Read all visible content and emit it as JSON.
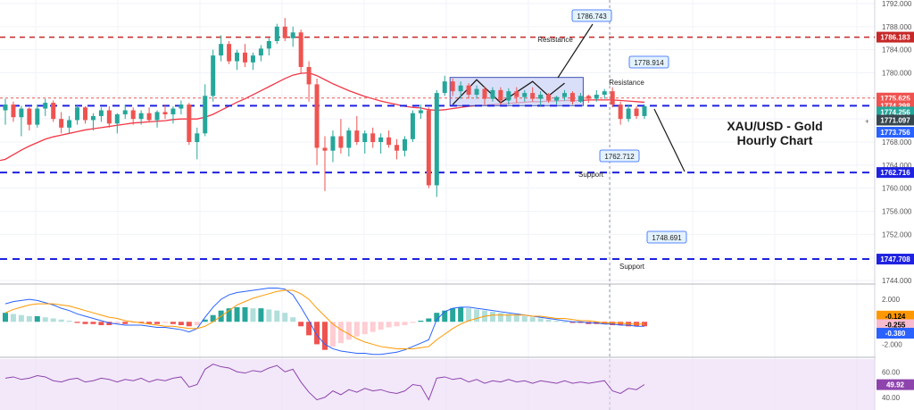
{
  "chart_data": {
    "type": "candlestick",
    "title_lines": [
      "XAU/USD - Gold",
      "Hourly Chart"
    ],
    "colors": {
      "bull": "#26a69a",
      "bear": "#ef5350",
      "ma": "#f23645",
      "support_line": "#1e22e0",
      "resistance_line": "#c62828",
      "rsi_line": "#8e44ad",
      "rsi_band": "#ead9f7",
      "macd_line": "#2962ff",
      "signal_line": "#ff9800",
      "box_fill": "#c9d2f5",
      "box_stroke": "#3f51b5"
    },
    "price_axis": {
      "min": 1744,
      "max": 1792,
      "ticks": [
        "1744.000",
        "1748.000",
        "1752.000",
        "1756.000",
        "1760.000",
        "1764.000",
        "1768.000",
        "1772.000",
        "1776.000",
        "1780.000",
        "1784.000",
        "1788.000",
        "1792.000"
      ]
    },
    "price_tags": [
      {
        "label": "1786.183",
        "value": 1786.183,
        "bg": "#c62828",
        "fg": "#ffffff"
      },
      {
        "label": "1775.625",
        "value": 1775.625,
        "bg": "#ef5350",
        "fg": "#ffffff"
      },
      {
        "label": "1774.298",
        "value": 1774.298,
        "bg": "#ef5350",
        "fg": "#ffffff"
      },
      {
        "label": "1774.256",
        "value": 1773.2,
        "bg": "#26a69a",
        "fg": "#ffffff"
      },
      {
        "label": "1771.097",
        "value": 1771.8,
        "bg": "#37474f",
        "fg": "#ffffff"
      },
      {
        "label": "1773.756",
        "value": 1769.7,
        "bg": "#2962ff",
        "fg": "#ffffff"
      },
      {
        "label": "1762.716",
        "value": 1762.716,
        "bg": "#1e22e0",
        "fg": "#ffffff"
      },
      {
        "label": "1747.708",
        "value": 1747.708,
        "bg": "#1e22e0",
        "fg": "#ffffff"
      }
    ],
    "levels": [
      {
        "name": "resistance-1786",
        "value": 1786.183,
        "color": "#c62828",
        "dash": "6,5",
        "width": 1.5
      },
      {
        "name": "resistance-1775",
        "value": 1775.625,
        "color": "#ef5350",
        "dash": "3,3",
        "width": 1
      },
      {
        "name": "support-1774",
        "value": 1774.298,
        "color": "#1e22e0",
        "dash": "8,6",
        "width": 2
      },
      {
        "name": "support-1762",
        "value": 1762.716,
        "color": "#1e22e0",
        "dash": "8,6",
        "width": 2
      },
      {
        "name": "support-1747",
        "value": 1747.708,
        "color": "#1e22e0",
        "dash": "8,6",
        "width": 2
      }
    ],
    "callouts": [
      {
        "label": "1786.743",
        "note": "Resistance",
        "value": 1790.6,
        "bar": 98
      },
      {
        "label": "1778.914",
        "note": "Resistance",
        "value": 1781.0,
        "bar": 105
      },
      {
        "label": "1762.712",
        "note": "Support",
        "value": 1765.2,
        "bar": 99
      },
      {
        "label": "1748.691",
        "note": "Support",
        "value": 1750.2,
        "bar": 106
      }
    ],
    "macd_axis": {
      "min": -3,
      "max": 3.2,
      "ticks": [
        "2.000",
        "-2.000"
      ]
    },
    "macd_tags": [
      {
        "label": "-0.124",
        "value": -0.124,
        "bg": "#ff9800",
        "fg": "#000000"
      },
      {
        "label": "-0.255",
        "value": -0.255,
        "bg": "#f8bbd0",
        "fg": "#000000"
      },
      {
        "label": "-0.380",
        "value": -0.38,
        "bg": "#2962ff",
        "fg": "#ffffff"
      }
    ],
    "rsi_axis": {
      "min": 30,
      "max": 70,
      "ticks": [
        "60.00",
        "40.00"
      ]
    },
    "rsi_tag": {
      "label": "49.92",
      "value": 49.92,
      "bg": "#8e44ad",
      "fg": "#ffffff"
    },
    "candles": [
      [
        1773.5,
        1775.5,
        1771,
        1774.5
      ],
      [
        1774.5,
        1775,
        1771.5,
        1772.3
      ],
      [
        1772.3,
        1774.3,
        1769,
        1773.8
      ],
      [
        1773.8,
        1774,
        1770,
        1771
      ],
      [
        1771,
        1774.5,
        1770.5,
        1773.8
      ],
      [
        1773.8,
        1775.5,
        1772.5,
        1774.8
      ],
      [
        1774.8,
        1775.2,
        1771.5,
        1772
      ],
      [
        1772,
        1773.2,
        1769.5,
        1770.5
      ],
      [
        1770.5,
        1772.5,
        1769.5,
        1771.8
      ],
      [
        1771.8,
        1774.5,
        1771,
        1774
      ],
      [
        1774,
        1774.2,
        1771.2,
        1771.8
      ],
      [
        1771.8,
        1773,
        1770,
        1772.5
      ],
      [
        1772.5,
        1774,
        1771.5,
        1773.5
      ],
      [
        1773.5,
        1774.2,
        1770.5,
        1771.2
      ],
      [
        1771.2,
        1773,
        1769.5,
        1772.8
      ],
      [
        1772.8,
        1774.5,
        1772,
        1773.5
      ],
      [
        1773.5,
        1774,
        1771,
        1772
      ],
      [
        1772,
        1773.5,
        1771,
        1773
      ],
      [
        1773,
        1774,
        1771.5,
        1771.8
      ],
      [
        1771.8,
        1773.5,
        1770.5,
        1773.2
      ],
      [
        1773.2,
        1774.5,
        1772,
        1772.8
      ],
      [
        1772.8,
        1774.2,
        1771.2,
        1773.8
      ],
      [
        1773.8,
        1775.2,
        1772.8,
        1774.5
      ],
      [
        1774.5,
        1774.8,
        1767.5,
        1768
      ],
      [
        1768,
        1770.5,
        1765,
        1769.5
      ],
      [
        1769.5,
        1778,
        1769,
        1776
      ],
      [
        1776,
        1784,
        1775,
        1783
      ],
      [
        1783,
        1786.5,
        1782,
        1785
      ],
      [
        1785,
        1785.5,
        1781.5,
        1782
      ],
      [
        1782,
        1784,
        1780.5,
        1783.5
      ],
      [
        1783.5,
        1785,
        1781,
        1781.8
      ],
      [
        1781.8,
        1783.5,
        1780.5,
        1783
      ],
      [
        1783,
        1784.8,
        1782,
        1784.2
      ],
      [
        1784.2,
        1786,
        1783,
        1785.5
      ],
      [
        1785.5,
        1788.5,
        1785,
        1788
      ],
      [
        1788,
        1789.5,
        1785.5,
        1786
      ],
      [
        1786,
        1788,
        1784.5,
        1787
      ],
      [
        1787,
        1787.5,
        1780,
        1781
      ],
      [
        1781,
        1782,
        1775,
        1778
      ],
      [
        1778,
        1779,
        1764,
        1767
      ],
      [
        1767,
        1769,
        1759.5,
        1766.5
      ],
      [
        1766.5,
        1770,
        1764.5,
        1769
      ],
      [
        1769,
        1772,
        1766,
        1767
      ],
      [
        1767,
        1770.5,
        1765.5,
        1770
      ],
      [
        1770,
        1772.5,
        1767.5,
        1768
      ],
      [
        1768,
        1770,
        1766,
        1769.5
      ],
      [
        1769.5,
        1770.5,
        1767,
        1768
      ],
      [
        1768,
        1769.5,
        1766,
        1768.8
      ],
      [
        1768.8,
        1770,
        1767,
        1767.5
      ],
      [
        1767.5,
        1768.5,
        1765,
        1766.5
      ],
      [
        1766.5,
        1769,
        1765.5,
        1768.5
      ],
      [
        1768.5,
        1773.5,
        1768,
        1773
      ],
      [
        1773,
        1774.5,
        1772,
        1773.5
      ],
      [
        1773.5,
        1774,
        1760,
        1760.5
      ],
      [
        1760.5,
        1777,
        1758.5,
        1776.5
      ],
      [
        1776.5,
        1779.5,
        1776,
        1778.5
      ],
      [
        1778.5,
        1779,
        1776,
        1776.8
      ],
      [
        1776.8,
        1778.5,
        1775.5,
        1777.8
      ],
      [
        1777.8,
        1778.2,
        1775.5,
        1776.2
      ],
      [
        1776.2,
        1777.8,
        1775.5,
        1777.2
      ],
      [
        1777.2,
        1777.6,
        1774.5,
        1775.5
      ],
      [
        1775.5,
        1777.5,
        1775,
        1777
      ],
      [
        1777,
        1777.5,
        1774.5,
        1775.2
      ],
      [
        1775.2,
        1777.3,
        1774.5,
        1776.8
      ],
      [
        1776.8,
        1777.5,
        1774.8,
        1775.8
      ],
      [
        1775.8,
        1777,
        1775,
        1776.5
      ],
      [
        1776.5,
        1777.5,
        1775,
        1775.5
      ],
      [
        1775.5,
        1776.8,
        1774.2,
        1776.2
      ],
      [
        1776.2,
        1776.5,
        1774.8,
        1775.2
      ],
      [
        1775.2,
        1776,
        1774.5,
        1775.8
      ],
      [
        1775.8,
        1777,
        1775.2,
        1776.5
      ],
      [
        1776.5,
        1776.8,
        1774.5,
        1775
      ],
      [
        1775,
        1776.5,
        1774.8,
        1776
      ],
      [
        1776,
        1776.2,
        1774.8,
        1775.5
      ],
      [
        1775.5,
        1777,
        1775,
        1776.2
      ],
      [
        1776.2,
        1777.2,
        1775.5,
        1776.8
      ],
      [
        1776.8,
        1777.5,
        1774,
        1774.5
      ],
      [
        1774.5,
        1775,
        1771,
        1772
      ],
      [
        1772,
        1774.5,
        1771.5,
        1773.8
      ],
      [
        1773.8,
        1774.2,
        1772,
        1772.5
      ],
      [
        1772.5,
        1774.5,
        1772,
        1774.2
      ]
    ],
    "ma": [
      1765,
      1765.8,
      1766.6,
      1767.3,
      1767.9,
      1768.5,
      1768.9,
      1769.2,
      1769.5,
      1769.8,
      1770.1,
      1770.3,
      1770.5,
      1770.7,
      1770.9,
      1771.1,
      1771.3,
      1771.4,
      1771.5,
      1771.6,
      1771.7,
      1771.9,
      1772,
      1772,
      1772,
      1772.3,
      1772.8,
      1773.5,
      1774.2,
      1774.9,
      1775.5,
      1776.2,
      1776.9,
      1777.6,
      1778.3,
      1779,
      1779.6,
      1779.9,
      1780,
      1779.5,
      1778.8,
      1778.1,
      1777.5,
      1776.9,
      1776.4,
      1775.9,
      1775.5,
      1775.1,
      1774.8,
      1774.5,
      1774.2,
      1774,
      1773.9,
      1773.6,
      1773.5,
      1773.6,
      1773.8,
      1774,
      1774.2,
      1774.3,
      1774.4,
      1774.5,
      1774.6,
      1774.7,
      1774.8,
      1774.9,
      1775,
      1775,
      1775.1,
      1775.1,
      1775.2,
      1775.2,
      1775.2,
      1775.3,
      1775.3,
      1775.3,
      1775.3,
      1775.2,
      1775.1,
      1775,
      1774.9
    ],
    "macd_hist": [
      0.8,
      0.7,
      0.6,
      0.5,
      0.5,
      0.4,
      0.3,
      0.2,
      0.1,
      -0.1,
      -0.2,
      -0.2,
      -0.3,
      -0.3,
      -0.2,
      -0.2,
      -0.1,
      -0.1,
      -0.2,
      -0.2,
      -0.1,
      -0.2,
      -0.3,
      -0.4,
      -0.3,
      0.2,
      0.6,
      1.0,
      1.2,
      1.3,
      1.3,
      1.2,
      1.2,
      1.1,
      1.0,
      0.8,
      0.4,
      -0.4,
      -1.2,
      -2.0,
      -2.5,
      -2.2,
      -1.9,
      -1.6,
      -1.3,
      -1.1,
      -0.9,
      -0.7,
      -0.5,
      -0.4,
      -0.3,
      -0.1,
      0.1,
      0.3,
      0.8,
      1.0,
      1.2,
      1.3,
      1.2,
      1.1,
      1.0,
      0.9,
      0.8,
      0.7,
      0.6,
      0.5,
      0.4,
      0.3,
      0.2,
      0.1,
      0.0,
      -0.1,
      -0.1,
      -0.2,
      -0.2,
      -0.2,
      -0.3,
      -0.3,
      -0.4,
      -0.4,
      -0.4
    ],
    "macd_line": [
      1.6,
      1.8,
      1.9,
      2.0,
      1.9,
      1.7,
      1.5,
      1.2,
      1.0,
      0.7,
      0.5,
      0.3,
      0.1,
      -0.1,
      -0.2,
      -0.3,
      -0.3,
      -0.3,
      -0.4,
      -0.5,
      -0.5,
      -0.6,
      -0.7,
      -0.9,
      -0.6,
      0.4,
      1.3,
      2.0,
      2.4,
      2.6,
      2.7,
      2.8,
      2.9,
      3.0,
      3.0,
      2.9,
      2.4,
      1.3,
      0.1,
      -1.2,
      -2.0,
      -2.4,
      -2.6,
      -2.7,
      -2.8,
      -2.8,
      -2.9,
      -2.9,
      -2.8,
      -2.7,
      -2.5,
      -2.2,
      -1.9,
      -1.6,
      0.2,
      0.9,
      1.2,
      1.3,
      1.3,
      1.2,
      1.1,
      1.0,
      0.9,
      0.8,
      0.7,
      0.6,
      0.5,
      0.4,
      0.3,
      0.2,
      0.1,
      0.0,
      0.0,
      -0.1,
      -0.1,
      -0.2,
      -0.2,
      -0.3,
      -0.3,
      -0.4,
      -0.4
    ],
    "signal_line": [
      0.8,
      1.1,
      1.3,
      1.5,
      1.6,
      1.6,
      1.6,
      1.5,
      1.4,
      1.2,
      1.0,
      0.8,
      0.6,
      0.4,
      0.3,
      0.1,
      0.0,
      -0.1,
      -0.2,
      -0.3,
      -0.4,
      -0.4,
      -0.5,
      -0.6,
      -0.6,
      -0.4,
      0.0,
      0.5,
      1.0,
      1.5,
      1.8,
      2.1,
      2.3,
      2.5,
      2.7,
      2.8,
      2.8,
      2.5,
      2.0,
      1.2,
      0.5,
      -0.2,
      -0.7,
      -1.1,
      -1.5,
      -1.8,
      -2.0,
      -2.2,
      -2.3,
      -2.4,
      -2.4,
      -2.4,
      -2.3,
      -2.2,
      -1.6,
      -1.1,
      -0.6,
      -0.2,
      0.1,
      0.3,
      0.5,
      0.6,
      0.6,
      0.6,
      0.6,
      0.6,
      0.5,
      0.5,
      0.4,
      0.3,
      0.3,
      0.2,
      0.1,
      0.1,
      0.0,
      -0.1,
      -0.1,
      -0.1,
      -0.2,
      -0.2,
      -0.2
    ],
    "rsi": [
      55,
      56,
      54,
      55,
      57,
      56,
      53,
      52,
      54,
      55,
      52,
      53,
      55,
      54,
      52,
      54,
      53,
      55,
      52,
      54,
      53,
      55,
      56,
      48,
      50,
      62,
      66,
      64,
      63,
      60,
      59,
      61,
      60,
      63,
      65,
      60,
      62,
      52,
      44,
      38,
      40,
      45,
      42,
      46,
      44,
      47,
      45,
      46,
      44,
      43,
      45,
      50,
      49,
      38,
      55,
      56,
      54,
      55,
      52,
      54,
      51,
      53,
      52,
      54,
      52,
      53,
      51,
      53,
      52,
      51,
      53,
      51,
      52,
      51,
      52,
      53,
      45,
      43,
      47,
      46,
      50
    ]
  }
}
